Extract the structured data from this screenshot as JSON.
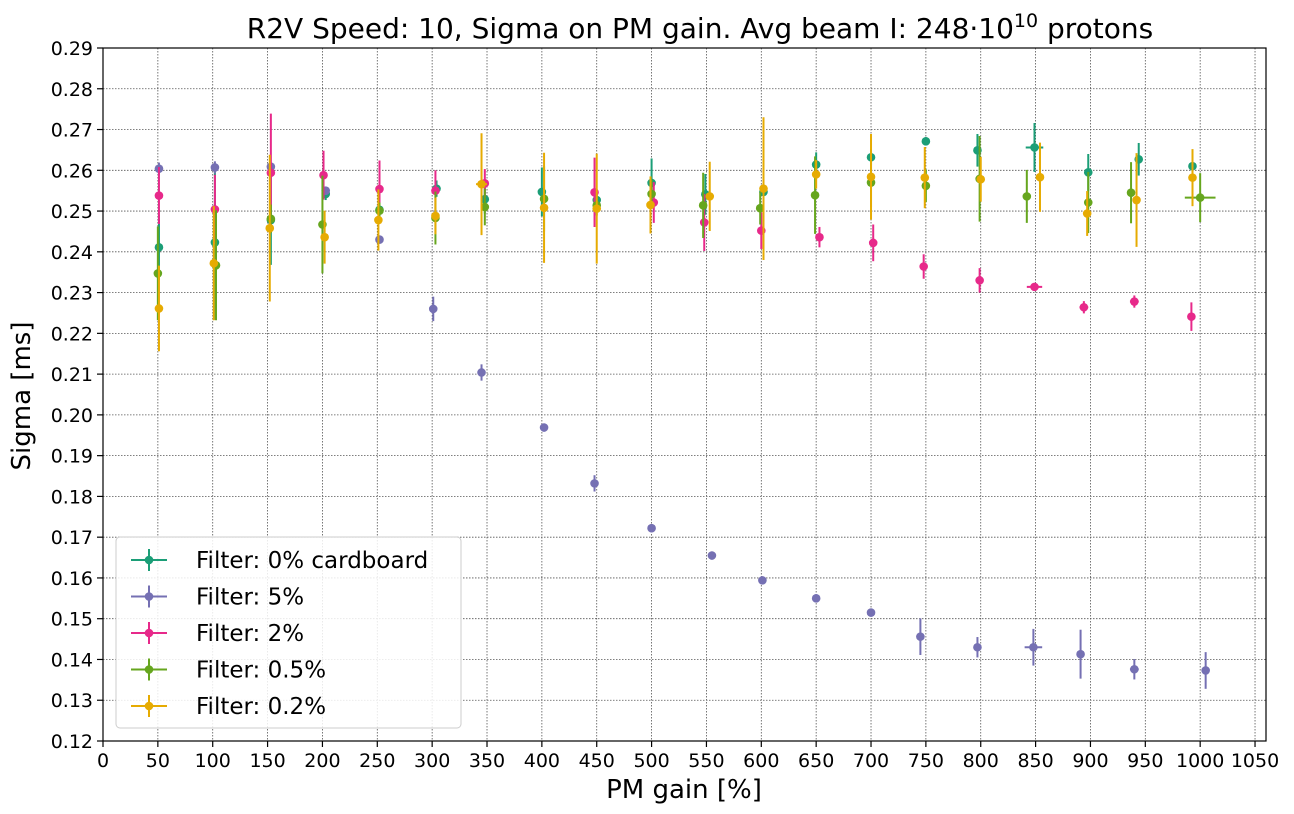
{
  "chart_data": {
    "type": "scatter",
    "title_main": "R2V Speed: 10, Sigma on PM gain. Avg beam I: 248·10",
    "title_exp": "10",
    "title_tail": " protons",
    "xlabel": "PM gain [%]",
    "ylabel": "Sigma [ms]",
    "xlim": [
      0,
      1060
    ],
    "ylim": [
      0.12,
      0.29
    ],
    "xticks": [
      0,
      50,
      100,
      150,
      200,
      250,
      300,
      350,
      400,
      450,
      500,
      550,
      600,
      650,
      700,
      750,
      800,
      850,
      900,
      950,
      1000,
      1050
    ],
    "yticks": [
      0.12,
      0.13,
      0.14,
      0.15,
      0.16,
      0.17,
      0.18,
      0.19,
      0.2,
      0.21,
      0.22,
      0.23,
      0.24,
      0.25,
      0.26,
      0.27,
      0.28,
      0.29
    ],
    "grid": true,
    "legend_position": "lower-left",
    "series": [
      {
        "name": "Filter: 0% cardboard",
        "color": "#1b9e77",
        "points": [
          {
            "x": 51,
            "y": 0.2411,
            "yerr": 0.008,
            "xerr": 0
          },
          {
            "x": 102,
            "y": 0.2423,
            "yerr": 0.019,
            "xerr": 0
          },
          {
            "x": 153,
            "y": 0.2478,
            "yerr": 0.011,
            "xerr": 0
          },
          {
            "x": 203,
            "y": 0.2542,
            "yerr": 0.0015,
            "xerr": 0
          },
          {
            "x": 252,
            "y": 0.2503,
            "yerr": 0.003,
            "xerr": 0
          },
          {
            "x": 304,
            "y": 0.2555,
            "yerr": 0.002,
            "xerr": 0
          },
          {
            "x": 348,
            "y": 0.2529,
            "yerr": 0.0035,
            "xerr": 0
          },
          {
            "x": 400,
            "y": 0.2547,
            "yerr": 0.006,
            "xerr": 0
          },
          {
            "x": 450,
            "y": 0.2527,
            "yerr": 0.002,
            "xerr": 0
          },
          {
            "x": 500,
            "y": 0.2569,
            "yerr": 0.006,
            "xerr": 0
          },
          {
            "x": 549,
            "y": 0.2541,
            "yerr": 0.005,
            "xerr": 0
          },
          {
            "x": 602,
            "y": 0.2547,
            "yerr": 0.0025,
            "xerr": 0
          },
          {
            "x": 650,
            "y": 0.2614,
            "yerr": 0.003,
            "xerr": 0
          },
          {
            "x": 700,
            "y": 0.2632,
            "yerr": 0.002,
            "xerr": 0
          },
          {
            "x": 750,
            "y": 0.2671,
            "yerr": 0.001,
            "xerr": 0
          },
          {
            "x": 797,
            "y": 0.2649,
            "yerr": 0.004,
            "xerr": 0
          },
          {
            "x": 849,
            "y": 0.2656,
            "yerr": 0.006,
            "xerr": 8
          },
          {
            "x": 898,
            "y": 0.2595,
            "yerr": 0.0045,
            "xerr": 0
          },
          {
            "x": 944,
            "y": 0.2627,
            "yerr": 0.004,
            "xerr": 0
          },
          {
            "x": 993,
            "y": 0.261,
            "yerr": 0.001,
            "xerr": 0
          }
        ]
      },
      {
        "name": "Filter: 5%",
        "color": "#7570b3",
        "points": [
          {
            "x": 51,
            "y": 0.2604,
            "yerr": 0.0015,
            "xerr": 0
          },
          {
            "x": 102,
            "y": 0.2607,
            "yerr": 0.0015,
            "xerr": 0
          },
          {
            "x": 153,
            "y": 0.2609,
            "yerr": 0.001,
            "xerr": 0
          },
          {
            "x": 203,
            "y": 0.255,
            "yerr": 0.001,
            "xerr": 0
          },
          {
            "x": 252,
            "y": 0.243,
            "yerr": 0.001,
            "xerr": 0
          },
          {
            "x": 301,
            "y": 0.226,
            "yerr": 0.003,
            "xerr": 3
          },
          {
            "x": 345,
            "y": 0.2104,
            "yerr": 0.002,
            "xerr": 3
          },
          {
            "x": 402,
            "y": 0.1969,
            "yerr": 0.001,
            "xerr": 0
          },
          {
            "x": 448,
            "y": 0.1832,
            "yerr": 0.002,
            "xerr": 0
          },
          {
            "x": 500,
            "y": 0.1722,
            "yerr": 0.001,
            "xerr": 0
          },
          {
            "x": 555,
            "y": 0.1655,
            "yerr": 0.001,
            "xerr": 0
          },
          {
            "x": 601,
            "y": 0.1594,
            "yerr": 0.001,
            "xerr": 0
          },
          {
            "x": 650,
            "y": 0.155,
            "yerr": 0.001,
            "xerr": 0
          },
          {
            "x": 700,
            "y": 0.1515,
            "yerr": 0.001,
            "xerr": 0
          },
          {
            "x": 745,
            "y": 0.1456,
            "yerr": 0.0045,
            "xerr": 0
          },
          {
            "x": 797,
            "y": 0.143,
            "yerr": 0.0025,
            "xerr": 0
          },
          {
            "x": 848,
            "y": 0.143,
            "yerr": 0.0045,
            "xerr": 8
          },
          {
            "x": 891,
            "y": 0.1413,
            "yerr": 0.006,
            "xerr": 0
          },
          {
            "x": 940,
            "y": 0.1376,
            "yerr": 0.0025,
            "xerr": 4
          },
          {
            "x": 1005,
            "y": 0.1373,
            "yerr": 0.0045,
            "xerr": 0
          }
        ]
      },
      {
        "name": "Filter: 2%",
        "color": "#e7298a",
        "points": [
          {
            "x": 51,
            "y": 0.2538,
            "yerr": 0.007,
            "xerr": 0
          },
          {
            "x": 102,
            "y": 0.2504,
            "yerr": 0.0085,
            "xerr": 0
          },
          {
            "x": 153,
            "y": 0.2594,
            "yerr": 0.0145,
            "xerr": 0
          },
          {
            "x": 201,
            "y": 0.2588,
            "yerr": 0.006,
            "xerr": 0
          },
          {
            "x": 252,
            "y": 0.2554,
            "yerr": 0.007,
            "xerr": 0
          },
          {
            "x": 303,
            "y": 0.255,
            "yerr": 0.005,
            "xerr": 0
          },
          {
            "x": 348,
            "y": 0.2568,
            "yerr": 0.0035,
            "xerr": 0
          },
          {
            "x": 448,
            "y": 0.2546,
            "yerr": 0.0085,
            "xerr": 0
          },
          {
            "x": 502,
            "y": 0.2521,
            "yerr": 0.005,
            "xerr": 0
          },
          {
            "x": 548,
            "y": 0.2472,
            "yerr": 0.007,
            "xerr": 0
          },
          {
            "x": 600,
            "y": 0.2452,
            "yerr": 0.0045,
            "xerr": 0
          },
          {
            "x": 653,
            "y": 0.2436,
            "yerr": 0.0025,
            "xerr": 0
          },
          {
            "x": 702,
            "y": 0.2422,
            "yerr": 0.0045,
            "xerr": 0
          },
          {
            "x": 748,
            "y": 0.2364,
            "yerr": 0.003,
            "xerr": 0
          },
          {
            "x": 799,
            "y": 0.233,
            "yerr": 0.003,
            "xerr": 0
          },
          {
            "x": 849,
            "y": 0.2314,
            "yerr": 0.0007,
            "xerr": 7
          },
          {
            "x": 894,
            "y": 0.2264,
            "yerr": 0.0015,
            "xerr": 4
          },
          {
            "x": 940,
            "y": 0.2278,
            "yerr": 0.0015,
            "xerr": 4
          },
          {
            "x": 992,
            "y": 0.2241,
            "yerr": 0.0035,
            "xerr": 0
          }
        ]
      },
      {
        "name": "Filter: 0.5%",
        "color": "#66a61e",
        "points": [
          {
            "x": 50,
            "y": 0.2347,
            "yerr": 0.0115,
            "xerr": 0
          },
          {
            "x": 103,
            "y": 0.2367,
            "yerr": 0.0135,
            "xerr": 0
          },
          {
            "x": 153,
            "y": 0.2481,
            "yerr": 0.0035,
            "xerr": 0
          },
          {
            "x": 200,
            "y": 0.2467,
            "yerr": 0.012,
            "xerr": 0
          },
          {
            "x": 252,
            "y": 0.2501,
            "yerr": 0.002,
            "xerr": 0
          },
          {
            "x": 303,
            "y": 0.2483,
            "yerr": 0.0065,
            "xerr": 0
          },
          {
            "x": 348,
            "y": 0.251,
            "yerr": 0.0045,
            "xerr": 0
          },
          {
            "x": 402,
            "y": 0.253,
            "yerr": 0.008,
            "xerr": 0
          },
          {
            "x": 450,
            "y": 0.2514,
            "yerr": 0.0025,
            "xerr": 0
          },
          {
            "x": 500,
            "y": 0.2542,
            "yerr": 0.0035,
            "xerr": 0
          },
          {
            "x": 547,
            "y": 0.2514,
            "yerr": 0.008,
            "xerr": 0
          },
          {
            "x": 599,
            "y": 0.2507,
            "yerr": 0.004,
            "xerr": 0
          },
          {
            "x": 649,
            "y": 0.2539,
            "yerr": 0.0095,
            "xerr": 0
          },
          {
            "x": 700,
            "y": 0.257,
            "yerr": 0.006,
            "xerr": 0
          },
          {
            "x": 750,
            "y": 0.2562,
            "yerr": 0.004,
            "xerr": 0
          },
          {
            "x": 799,
            "y": 0.2579,
            "yerr": 0.0105,
            "xerr": 0
          },
          {
            "x": 842,
            "y": 0.2536,
            "yerr": 0.0065,
            "xerr": 0
          },
          {
            "x": 898,
            "y": 0.2521,
            "yerr": 0.0075,
            "xerr": 0
          },
          {
            "x": 937,
            "y": 0.2545,
            "yerr": 0.0075,
            "xerr": 0
          },
          {
            "x": 1000,
            "y": 0.2533,
            "yerr": 0.006,
            "xerr": 14
          }
        ]
      },
      {
        "name": "Filter: 0.2%",
        "color": "#e6ab02",
        "points": [
          {
            "x": 51,
            "y": 0.2261,
            "yerr": 0.0105,
            "xerr": 0
          },
          {
            "x": 101,
            "y": 0.2372,
            "yerr": 0.014,
            "xerr": 0
          },
          {
            "x": 152,
            "y": 0.2458,
            "yerr": 0.018,
            "xerr": 0
          },
          {
            "x": 202,
            "y": 0.2436,
            "yerr": 0.0065,
            "xerr": 0
          },
          {
            "x": 251,
            "y": 0.2478,
            "yerr": 0.0075,
            "xerr": 0
          },
          {
            "x": 303,
            "y": 0.2488,
            "yerr": 0.0045,
            "xerr": 0
          },
          {
            "x": 345,
            "y": 0.2566,
            "yerr": 0.0125,
            "xerr": 5
          },
          {
            "x": 402,
            "y": 0.2508,
            "yerr": 0.0135,
            "xerr": 0
          },
          {
            "x": 450,
            "y": 0.2506,
            "yerr": 0.0135,
            "xerr": 0
          },
          {
            "x": 499,
            "y": 0.2515,
            "yerr": 0.007,
            "xerr": 0
          },
          {
            "x": 553,
            "y": 0.2536,
            "yerr": 0.0085,
            "xerr": 0
          },
          {
            "x": 602,
            "y": 0.2555,
            "yerr": 0.0175,
            "xerr": 0
          },
          {
            "x": 650,
            "y": 0.259,
            "yerr": 0.0035,
            "xerr": 0
          },
          {
            "x": 700,
            "y": 0.2584,
            "yerr": 0.0105,
            "xerr": 0
          },
          {
            "x": 749,
            "y": 0.2582,
            "yerr": 0.0075,
            "xerr": 0
          },
          {
            "x": 800,
            "y": 0.2578,
            "yerr": 0.0055,
            "xerr": 0
          },
          {
            "x": 854,
            "y": 0.2583,
            "yerr": 0.0085,
            "xerr": 0
          },
          {
            "x": 897,
            "y": 0.2494,
            "yerr": 0.0055,
            "xerr": 0
          },
          {
            "x": 942,
            "y": 0.2527,
            "yerr": 0.0115,
            "xerr": 0
          },
          {
            "x": 993,
            "y": 0.2582,
            "yerr": 0.007,
            "xerr": 0
          }
        ]
      }
    ]
  }
}
